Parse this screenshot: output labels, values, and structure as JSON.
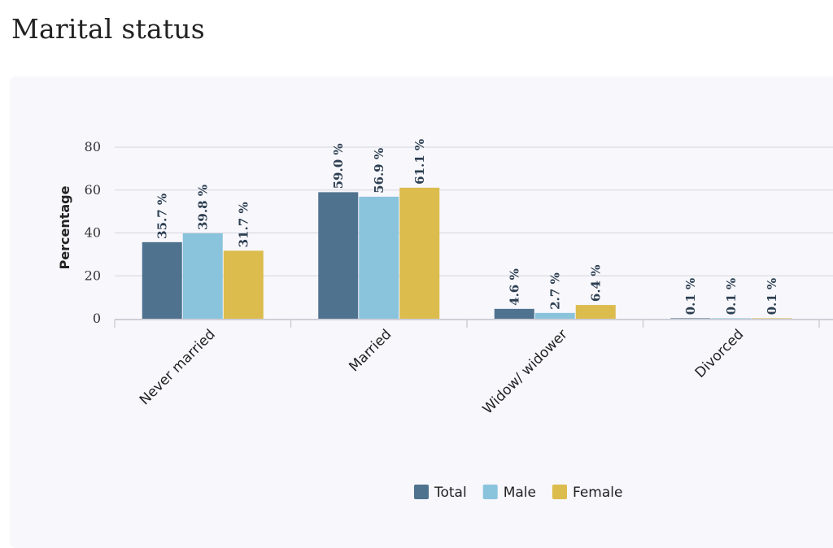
{
  "page": {
    "title": "Marital status"
  },
  "chart_data": {
    "type": "bar",
    "categories": [
      "Never married",
      "Married",
      "Widow/ widower",
      "Divorced"
    ],
    "series": [
      {
        "name": "Total",
        "color": "#4f728f",
        "values": [
          35.7,
          59.0,
          4.6,
          0.1
        ],
        "labels": [
          "35.7 %",
          "59.0 %",
          "4.6 %",
          "0.1 %"
        ]
      },
      {
        "name": "Male",
        "color": "#8ac3dc",
        "values": [
          39.8,
          56.9,
          2.7,
          0.1
        ],
        "labels": [
          "39.8 %",
          "56.9 %",
          "2.7 %",
          "0.1 %"
        ]
      },
      {
        "name": "Female",
        "color": "#dbbc4d",
        "values": [
          31.7,
          61.1,
          6.4,
          0.1
        ],
        "labels": [
          "31.7 %",
          "61.1 %",
          "6.4 %",
          "0.1 %"
        ]
      }
    ],
    "ylabel": "Percentage",
    "xlabel": "",
    "ylim": [
      0,
      80
    ],
    "yticks": [
      0,
      20,
      40,
      60,
      80
    ],
    "grid": true,
    "legend_position": "bottom"
  }
}
